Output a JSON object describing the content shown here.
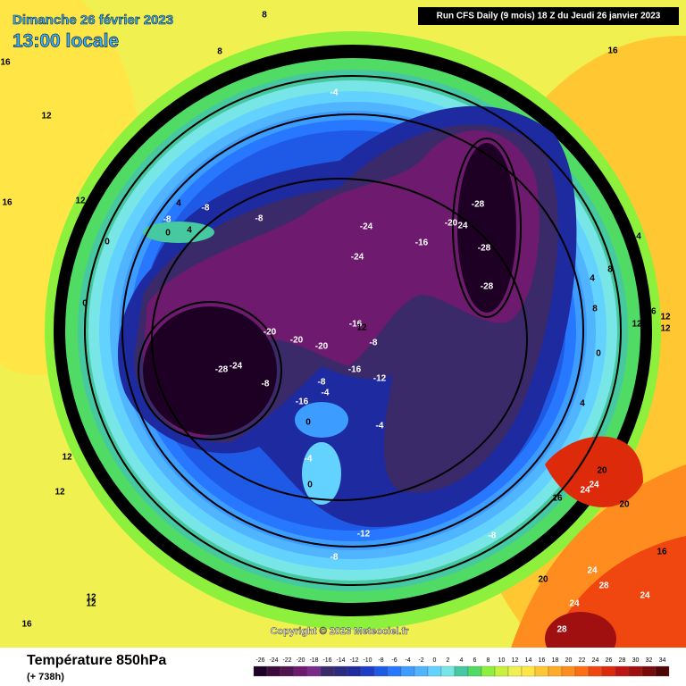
{
  "header": {
    "date": "Dimanche 26 février 2023",
    "time": "13:00 locale",
    "run": "Run CFS Daily (9 mois) 18 Z du Jeudi 26 janvier 2023"
  },
  "footer": {
    "variable": "Température 850hPa",
    "lead": "(+ 738h)",
    "copyright": "Copyright © 2023 Meteociel.fr"
  },
  "legend": {
    "ticks": [
      -26,
      -24,
      -22,
      -20,
      -18,
      -16,
      -14,
      -12,
      -10,
      -8,
      -6,
      -4,
      -2,
      0,
      2,
      4,
      6,
      8,
      10,
      12,
      14,
      16,
      18,
      20,
      22,
      24,
      26,
      28,
      30,
      32,
      34
    ],
    "colors": [
      "#1e0024",
      "#3c0a3c",
      "#501450",
      "#6e1a6e",
      "#7a2a8a",
      "#3a2a6a",
      "#2a2a80",
      "#1e2aa0",
      "#1e3cc8",
      "#1e5ae6",
      "#2878ff",
      "#3c9cff",
      "#50b4ff",
      "#64d2ff",
      "#78e6e6",
      "#46c8a0",
      "#50dc64",
      "#8cf03c",
      "#c8f03c",
      "#f0f050",
      "#ffe646",
      "#ffc832",
      "#ffaa28",
      "#ff8c1e",
      "#ff6e14",
      "#f04610",
      "#dc2a0a",
      "#c01414",
      "#a01010",
      "#780a0a",
      "#500505"
    ]
  },
  "contour_labels": [
    8,
    8,
    16,
    16,
    12,
    12,
    16,
    12,
    4,
    -8,
    -8,
    -8,
    4,
    0,
    0,
    -4,
    -24,
    -24,
    -16,
    -20,
    24,
    -28,
    -28,
    -28,
    4,
    8,
    4,
    8,
    16,
    12,
    12,
    12,
    0,
    -20,
    -20,
    -20,
    -16,
    12,
    -8,
    -28,
    -24,
    -8,
    -8,
    -4,
    -16,
    -12,
    -16,
    0,
    4,
    -4,
    0,
    -4,
    0,
    12,
    12,
    20,
    24,
    24,
    16,
    20,
    16,
    -12,
    -8,
    -8,
    20,
    24,
    28,
    24,
    12,
    12,
    24,
    16,
    28
  ]
}
